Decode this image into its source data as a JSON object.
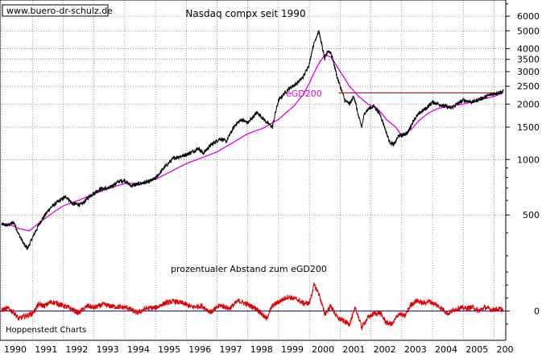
{
  "chart_data": [
    {
      "type": "line",
      "title": "Nasdaq compx seit 1990",
      "y_scale": "log",
      "ylim": [
        300,
        7200
      ],
      "xlim": [
        1990.0,
        2006.4
      ],
      "grid": true,
      "y_ticks": [
        500,
        1000,
        1500,
        2000,
        2500,
        3000,
        3500,
        4000,
        5000,
        6000
      ],
      "x_ticks": [
        "1990",
        "1991",
        "1992",
        "1993",
        "1994",
        "1995",
        "1996",
        "1997",
        "1998",
        "1999",
        "2000",
        "2001",
        "2002",
        "2003",
        "2004",
        "2005",
        "200"
      ],
      "series": [
        {
          "name": "",
          "color": "#000000",
          "x": [
            1990.0,
            1990.2,
            1990.4,
            1990.55,
            1990.75,
            1990.85,
            1991.0,
            1991.3,
            1991.6,
            1991.9,
            1992.1,
            1992.3,
            1992.6,
            1992.9,
            1993.2,
            1993.5,
            1993.8,
            1994.0,
            1994.2,
            1994.5,
            1994.8,
            1995.0,
            1995.3,
            1995.6,
            1995.9,
            1996.1,
            1996.4,
            1996.55,
            1996.8,
            1997.1,
            1997.3,
            1997.6,
            1997.8,
            1998.0,
            1998.3,
            1998.6,
            1998.8,
            1999.0,
            1999.3,
            1999.6,
            1999.8,
            2000.0,
            2000.1,
            2000.2,
            2000.3,
            2000.4,
            2000.5,
            2000.6,
            2000.7,
            2000.8,
            2000.9,
            2001.0,
            2001.15,
            2001.3,
            2001.45,
            2001.6,
            2001.7,
            2001.8,
            2001.95,
            2002.1,
            2002.3,
            2002.5,
            2002.6,
            2002.75,
            2002.9,
            2003.0,
            2003.2,
            2003.4,
            2003.6,
            2003.8,
            2004.0,
            2004.2,
            2004.4,
            2004.6,
            2004.8,
            2005.0,
            2005.3,
            2005.6,
            2005.9,
            2006.1,
            2006.3
          ],
          "y": [
            445,
            440,
            455,
            395,
            340,
            330,
            375,
            470,
            550,
            600,
            630,
            575,
            570,
            640,
            690,
            700,
            760,
            770,
            720,
            740,
            760,
            790,
            910,
            1020,
            1050,
            1080,
            1150,
            1080,
            1200,
            1300,
            1250,
            1550,
            1650,
            1580,
            1800,
            1600,
            1500,
            2100,
            2400,
            2600,
            2800,
            3300,
            4000,
            4500,
            5000,
            4200,
            3500,
            3900,
            3800,
            3300,
            2800,
            2500,
            2100,
            2000,
            2200,
            1700,
            1500,
            1800,
            1900,
            1950,
            1750,
            1400,
            1250,
            1200,
            1350,
            1350,
            1400,
            1650,
            1800,
            1900,
            2050,
            2000,
            1950,
            1900,
            2000,
            2100,
            2050,
            2150,
            2250,
            2300,
            2350
          ]
        },
        {
          "name": "eGD200",
          "color": "#dd00dd",
          "x": [
            1990.0,
            1990.3,
            1990.6,
            1990.9,
            1991.2,
            1991.6,
            1992.0,
            1992.5,
            1993.0,
            1993.5,
            1994.0,
            1994.5,
            1995.0,
            1995.5,
            1996.0,
            1996.5,
            1997.0,
            1997.5,
            1998.0,
            1998.5,
            1999.0,
            1999.5,
            1999.8,
            2000.0,
            2000.3,
            2000.5,
            2000.7,
            2001.0,
            2001.3,
            2001.6,
            2001.9,
            2002.2,
            2002.5,
            2002.8,
            2003.0,
            2003.3,
            2003.6,
            2003.9,
            2004.2,
            2004.6,
            2005.0,
            2005.5,
            2006.0,
            2006.3
          ],
          "y": [
            445,
            440,
            420,
            410,
            450,
            505,
            560,
            600,
            650,
            700,
            740,
            745,
            780,
            860,
            950,
            1020,
            1100,
            1230,
            1380,
            1480,
            1650,
            1950,
            2250,
            2600,
            3300,
            3700,
            3600,
            3000,
            2500,
            2200,
            2000,
            1900,
            1650,
            1500,
            1350,
            1450,
            1650,
            1800,
            1900,
            1950,
            2000,
            2100,
            2200,
            2300
          ]
        }
      ],
      "annotations": [
        {
          "type": "horizontal_line",
          "y": 2300,
          "x_start": 2000.95,
          "x_end": 2006.3,
          "color": "#cc0000"
        }
      ],
      "labels": {
        "egd200": "eGD200",
        "watermark": "www.buero-dr-schulz.de"
      }
    },
    {
      "type": "line",
      "title": "prozentualer Abstand zum eGD200",
      "ylim": [
        -45,
        65
      ],
      "y_ticks": [
        0
      ],
      "zero_line": true,
      "series": [
        {
          "name": "",
          "color": "#dd0000",
          "x": [
            1990.0,
            1990.2,
            1990.4,
            1990.55,
            1990.75,
            1991.0,
            1991.2,
            1991.4,
            1991.6,
            1991.8,
            1992.0,
            1992.2,
            1992.5,
            1992.8,
            1993.0,
            1993.3,
            1993.6,
            1993.9,
            1994.1,
            1994.4,
            1994.7,
            1995.0,
            1995.3,
            1995.6,
            1995.9,
            1996.2,
            1996.5,
            1996.8,
            1997.1,
            1997.4,
            1997.7,
            1998.0,
            1998.3,
            1998.6,
            1998.8,
            1999.0,
            1999.3,
            1999.6,
            1999.8,
            2000.0,
            2000.15,
            2000.3,
            2000.5,
            2000.7,
            2000.9,
            2001.1,
            2001.3,
            2001.5,
            2001.7,
            2001.9,
            2002.1,
            2002.3,
            2002.5,
            2002.7,
            2002.9,
            2003.1,
            2003.3,
            2003.5,
            2003.7,
            2003.9,
            2004.1,
            2004.3,
            2004.5,
            2004.7,
            2004.9,
            2005.1,
            2005.3,
            2005.5,
            2005.7,
            2005.9,
            2006.1,
            2006.3
          ],
          "y": [
            2,
            4,
            -2,
            -12,
            -8,
            -4,
            10,
            8,
            14,
            12,
            8,
            5,
            -3,
            8,
            5,
            10,
            7,
            6,
            5,
            -3,
            4,
            5,
            12,
            15,
            12,
            6,
            8,
            -2,
            9,
            4,
            16,
            10,
            3,
            -12,
            8,
            14,
            22,
            18,
            12,
            12,
            40,
            28,
            -5,
            8,
            -10,
            -15,
            -20,
            5,
            -25,
            -10,
            -4,
            -3,
            -18,
            -20,
            -4,
            -8,
            10,
            16,
            12,
            15,
            10,
            4,
            -4,
            2,
            5,
            4,
            6,
            0,
            6,
            2,
            3,
            2
          ]
        }
      ],
      "labels": {
        "source": "Hoppenstedt Charts"
      }
    }
  ]
}
